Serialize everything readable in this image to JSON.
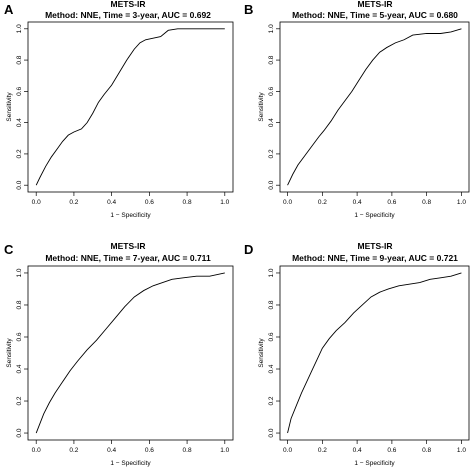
{
  "chart_data": [
    {
      "type": "line",
      "panel": "A",
      "title": "METS-IR",
      "subtitle": "Method: NNE, Time = 3-year, AUC = 0.692",
      "xlabel": "1 − Specificity",
      "ylabel": "Sensitivity",
      "xlim": [
        0,
        1
      ],
      "ylim": [
        0,
        1
      ],
      "xticks": [
        "0.0",
        "0.2",
        "0.4",
        "0.6",
        "0.8",
        "1.0"
      ],
      "yticks": [
        "0.0",
        "0.2",
        "0.4",
        "0.6",
        "0.8",
        "1.0"
      ],
      "grid": false,
      "series": [
        {
          "x": [
            0.0,
            0.02,
            0.05,
            0.08,
            0.11,
            0.14,
            0.17,
            0.2,
            0.24,
            0.27,
            0.3,
            0.33,
            0.36,
            0.4,
            0.44,
            0.48,
            0.52,
            0.55,
            0.58,
            0.62,
            0.66,
            0.7,
            0.75,
            0.85,
            1.0
          ],
          "y": [
            0.0,
            0.05,
            0.12,
            0.18,
            0.23,
            0.28,
            0.32,
            0.34,
            0.36,
            0.4,
            0.46,
            0.53,
            0.58,
            0.64,
            0.72,
            0.8,
            0.87,
            0.91,
            0.93,
            0.94,
            0.95,
            0.99,
            1.0,
            1.0,
            1.0
          ]
        }
      ]
    },
    {
      "type": "line",
      "panel": "B",
      "title": "METS-IR",
      "subtitle": "Method: NNE, Time = 5-year, AUC = 0.680",
      "xlabel": "1 − Specificity",
      "ylabel": "Sensitivity",
      "xlim": [
        0,
        1
      ],
      "ylim": [
        0,
        1
      ],
      "xticks": [
        "0.0",
        "0.2",
        "0.4",
        "0.6",
        "0.8",
        "1.0"
      ],
      "yticks": [
        "0.0",
        "0.2",
        "0.4",
        "0.6",
        "0.8",
        "1.0"
      ],
      "grid": false,
      "series": [
        {
          "x": [
            0.0,
            0.03,
            0.06,
            0.1,
            0.14,
            0.18,
            0.21,
            0.25,
            0.29,
            0.33,
            0.37,
            0.41,
            0.45,
            0.49,
            0.53,
            0.57,
            0.62,
            0.67,
            0.72,
            0.8,
            0.88,
            0.94,
            1.0
          ],
          "y": [
            0.0,
            0.07,
            0.13,
            0.19,
            0.25,
            0.31,
            0.35,
            0.41,
            0.48,
            0.54,
            0.6,
            0.67,
            0.74,
            0.8,
            0.85,
            0.88,
            0.91,
            0.93,
            0.96,
            0.97,
            0.97,
            0.98,
            1.0
          ]
        }
      ]
    },
    {
      "type": "line",
      "panel": "C",
      "title": "METS-IR",
      "subtitle": "Method: NNE, Time = 7-year, AUC = 0.711",
      "xlabel": "1 − Specificity",
      "ylabel": "Sensitivity",
      "xlim": [
        0,
        1
      ],
      "ylim": [
        0,
        1
      ],
      "xticks": [
        "0.0",
        "0.2",
        "0.4",
        "0.6",
        "0.8",
        "1.0"
      ],
      "yticks": [
        "0.0",
        "0.2",
        "0.4",
        "0.6",
        "0.8",
        "1.0"
      ],
      "grid": false,
      "series": [
        {
          "x": [
            0.0,
            0.02,
            0.04,
            0.07,
            0.1,
            0.14,
            0.18,
            0.22,
            0.27,
            0.32,
            0.37,
            0.42,
            0.47,
            0.52,
            0.57,
            0.62,
            0.67,
            0.72,
            0.78,
            0.85,
            0.92,
            1.0
          ],
          "y": [
            0.0,
            0.06,
            0.12,
            0.19,
            0.25,
            0.32,
            0.39,
            0.45,
            0.52,
            0.58,
            0.65,
            0.72,
            0.79,
            0.85,
            0.89,
            0.92,
            0.94,
            0.96,
            0.97,
            0.98,
            0.98,
            1.0
          ]
        }
      ]
    },
    {
      "type": "line",
      "panel": "D",
      "title": "METS-IR",
      "subtitle": "Method: NNE, Time = 9-year, AUC = 0.721",
      "xlabel": "1 − Specificity",
      "ylabel": "Sensitivity",
      "xlim": [
        0,
        1
      ],
      "ylim": [
        0,
        1
      ],
      "xticks": [
        "0.0",
        "0.2",
        "0.4",
        "0.6",
        "0.8",
        "1.0"
      ],
      "yticks": [
        "0.0",
        "0.2",
        "0.4",
        "0.6",
        "0.8",
        "1.0"
      ],
      "grid": false,
      "series": [
        {
          "x": [
            0.0,
            0.02,
            0.05,
            0.08,
            0.11,
            0.14,
            0.17,
            0.2,
            0.24,
            0.28,
            0.33,
            0.38,
            0.43,
            0.48,
            0.53,
            0.58,
            0.64,
            0.7,
            0.76,
            0.82,
            0.88,
            0.94,
            1.0
          ],
          "y": [
            0.0,
            0.09,
            0.17,
            0.25,
            0.32,
            0.39,
            0.46,
            0.53,
            0.59,
            0.64,
            0.69,
            0.75,
            0.8,
            0.85,
            0.88,
            0.9,
            0.92,
            0.93,
            0.94,
            0.96,
            0.97,
            0.98,
            1.0
          ]
        }
      ]
    }
  ]
}
